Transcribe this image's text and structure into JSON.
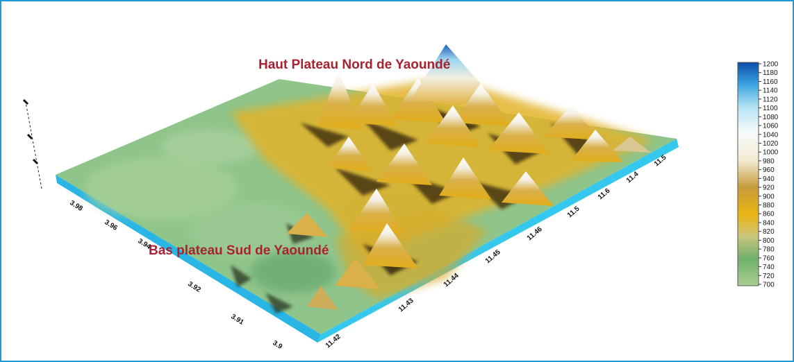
{
  "annotations": {
    "north": "Haut Plateau Nord de Yaoundé",
    "south": "Bas plateau Sud de Yaoundé"
  },
  "axes": {
    "latitude_ticks": [
      "3.98",
      "3.96",
      "3.94",
      "3.92",
      "3.91",
      "3.9"
    ],
    "longitude_ticks": [
      "11.42",
      "11.43",
      "11.44",
      "11.45",
      "11.46",
      "11.5",
      "11.6",
      "11.4",
      "11.5"
    ]
  },
  "colorbar": {
    "ticks": [
      "1200",
      "1180",
      "1160",
      "1140",
      "1120",
      "1100",
      "1080",
      "1060",
      "1040",
      "1020",
      "1000",
      "980",
      "960",
      "940",
      "920",
      "900",
      "880",
      "860",
      "840",
      "820",
      "800",
      "780",
      "760",
      "740",
      "720",
      "700"
    ],
    "min": 700,
    "max": 1200,
    "stops": [
      {
        "value": 700,
        "color": "#a9cf92"
      },
      {
        "value": 760,
        "color": "#6fb06d"
      },
      {
        "value": 810,
        "color": "#c9c57d"
      },
      {
        "value": 860,
        "color": "#eab514"
      },
      {
        "value": 920,
        "color": "#c59b3a"
      },
      {
        "value": 980,
        "color": "#f3ead2"
      },
      {
        "value": 1040,
        "color": "#f8fbfb"
      },
      {
        "value": 1100,
        "color": "#b5e3f4"
      },
      {
        "value": 1150,
        "color": "#3ca5e0"
      },
      {
        "value": 1200,
        "color": "#0a4ca8"
      }
    ]
  },
  "colors": {
    "frame_border": "#1f9ad6",
    "annotation_text": "#a8232f",
    "base_side": "#35c8ee",
    "lowland": "#8fc48b"
  }
}
